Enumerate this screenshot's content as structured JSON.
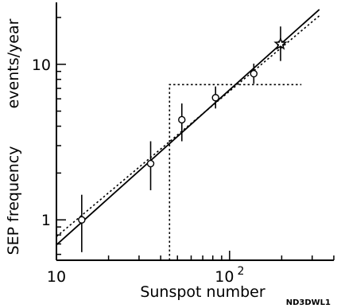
{
  "chart_data": {
    "type": "scatter",
    "xlabel": "Sunspot number",
    "ylabel": "SEP frequency",
    "ylabel_units": "events/year",
    "plot_id": "ND3DWL1",
    "x_scale": "log",
    "y_scale": "log",
    "xlim": [
      10,
      400
    ],
    "ylim": [
      0.55,
      25
    ],
    "x_ticks": [
      {
        "value": 10,
        "base": "10",
        "exp": ""
      },
      {
        "value": 100,
        "base": "10",
        "exp": "2"
      }
    ],
    "y_ticks": [
      {
        "value": 1,
        "label": "1"
      },
      {
        "value": 10,
        "label": "10"
      }
    ],
    "series": [
      {
        "marker": "circle-with-errorbar",
        "points": [
          {
            "x": 14,
            "y": 1.0,
            "y_low": 0.62,
            "y_high": 1.45
          },
          {
            "x": 35,
            "y": 2.3,
            "y_low": 1.55,
            "y_high": 3.2
          },
          {
            "x": 53,
            "y": 4.4,
            "y_low": 3.2,
            "y_high": 5.6
          },
          {
            "x": 83,
            "y": 6.1,
            "y_low": 5.2,
            "y_high": 7.2
          },
          {
            "x": 138,
            "y": 8.7,
            "y_low": 7.5,
            "y_high": 10.1
          },
          {
            "x": 197,
            "y": 13.5,
            "y_low": 10.5,
            "y_high": 17.5
          }
        ]
      },
      {
        "marker": "star",
        "points": [
          {
            "x": 197,
            "y": 13.5
          }
        ]
      },
      {
        "line_style": "solid",
        "points": [
          {
            "x": 10,
            "y": 0.69
          },
          {
            "x": 330,
            "y": 22.5
          }
        ]
      },
      {
        "line_style": "dotted",
        "points": [
          {
            "x": 10,
            "y": 0.78
          },
          {
            "x": 330,
            "y": 20.5
          }
        ]
      },
      {
        "line_style": "dotted-step",
        "points": [
          {
            "x": 45,
            "y": 0.55
          },
          {
            "x": 45,
            "y": 7.4
          },
          {
            "x": 260,
            "y": 7.4
          }
        ]
      }
    ]
  }
}
